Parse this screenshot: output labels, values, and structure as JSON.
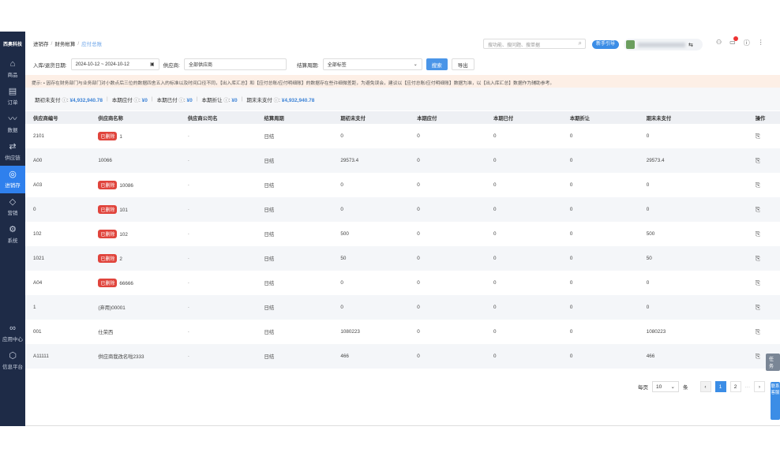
{
  "brand": "西奥科技",
  "sidebar": {
    "items": [
      {
        "label": "商品",
        "icon": "bag-icon",
        "glyph": "⌂"
      },
      {
        "label": "订单",
        "icon": "order-icon",
        "glyph": "▤"
      },
      {
        "label": "数据",
        "icon": "chart-icon",
        "glyph": "〰"
      },
      {
        "label": "供应链",
        "icon": "supply-icon",
        "glyph": "⇄"
      },
      {
        "label": "进销存",
        "icon": "inventory-icon",
        "glyph": "◎",
        "active": true
      },
      {
        "label": "营销",
        "icon": "tag-icon",
        "glyph": "◇"
      },
      {
        "label": "系统",
        "icon": "gear-icon",
        "glyph": "⚙"
      }
    ],
    "bottom": [
      {
        "label": "应用中心",
        "icon": "apps-icon",
        "glyph": "∞"
      },
      {
        "label": "信息平台",
        "icon": "cube-icon",
        "glyph": "⬡"
      }
    ]
  },
  "breadcrumb": [
    "进销存",
    "财务帐算",
    "应付总账"
  ],
  "topbar": {
    "search_placeholder": "搜功能、搜问题、搜单据",
    "guide": "新手引导"
  },
  "filter": {
    "date_label": "入库/退货日期:",
    "date_value": "2024-10-12 ~ 2024-10-12",
    "supplier_label": "供应商:",
    "supplier_value": "全部供应商",
    "settle_label": "结算周期:",
    "settle_value": "全部标签",
    "search": "搜索",
    "export": "导出"
  },
  "notice": "提示: • 因存在财务部门与业务部门对小数点后三位的数据四舍五入的标准以及时间口径不同，【出入库汇总】和【应付总账/应付明细账】的数据存在些许细微差距，为避免误会，建议以【应付总账/应付明细账】数据为准，以【出入库汇总】数据作为辅助参考。",
  "summary": [
    {
      "label": "期初未支付",
      "value": "¥4,932,940.78"
    },
    {
      "label": "本期应付",
      "value": "¥0"
    },
    {
      "label": "本期已付",
      "value": "¥0"
    },
    {
      "label": "本期折让",
      "value": "¥0"
    },
    {
      "label": "期末未支付",
      "value": "¥4,932,940.78"
    }
  ],
  "table": {
    "columns": [
      "供应商编号",
      "供应商名称",
      "供应商公司名",
      "结算周期",
      "期初未支付",
      "本期应付",
      "本期已付",
      "本期折让",
      "期末未支付",
      "操作"
    ],
    "deleted_tag": "已删除",
    "rows": [
      [
        "2101",
        "1",
        true,
        "-",
        "日结",
        "0",
        "0",
        "0",
        "0",
        "0"
      ],
      [
        "A00",
        "10066",
        false,
        "-",
        "日结",
        "29573.4",
        "0",
        "0",
        "0",
        "29573.4"
      ],
      [
        "A03",
        "10086",
        true,
        "-",
        "日结",
        "0",
        "0",
        "0",
        "0",
        "0"
      ],
      [
        "0",
        "101",
        true,
        "-",
        "日结",
        "0",
        "0",
        "0",
        "0",
        "0"
      ],
      [
        "102",
        "102",
        true,
        "-",
        "日结",
        "500",
        "0",
        "0",
        "0",
        "500"
      ],
      [
        "1021",
        "2",
        true,
        "-",
        "日结",
        "50",
        "0",
        "0",
        "0",
        "50"
      ],
      [
        "A04",
        "66666",
        true,
        "-",
        "日结",
        "0",
        "0",
        "0",
        "0",
        "0"
      ],
      [
        "1",
        "(弃用)00001",
        false,
        "-",
        "日结",
        "0",
        "0",
        "0",
        "0",
        "0"
      ],
      [
        "001",
        "仕荣西",
        false,
        "-",
        "日结",
        "1080223",
        "0",
        "0",
        "0",
        "1080223"
      ],
      [
        "A11111",
        "供应商我改名啦2333",
        false,
        "-",
        "日结",
        "466",
        "0",
        "0",
        "0",
        "466"
      ]
    ]
  },
  "pagination": {
    "per_page_label": "每页",
    "per_page": "10",
    "unit": "条",
    "pages": [
      "1",
      "2"
    ],
    "current": "1",
    "prev": "‹",
    "next": "›",
    "ellipsis": "···"
  },
  "floating": {
    "task": "任务",
    "service": "联系客服"
  }
}
